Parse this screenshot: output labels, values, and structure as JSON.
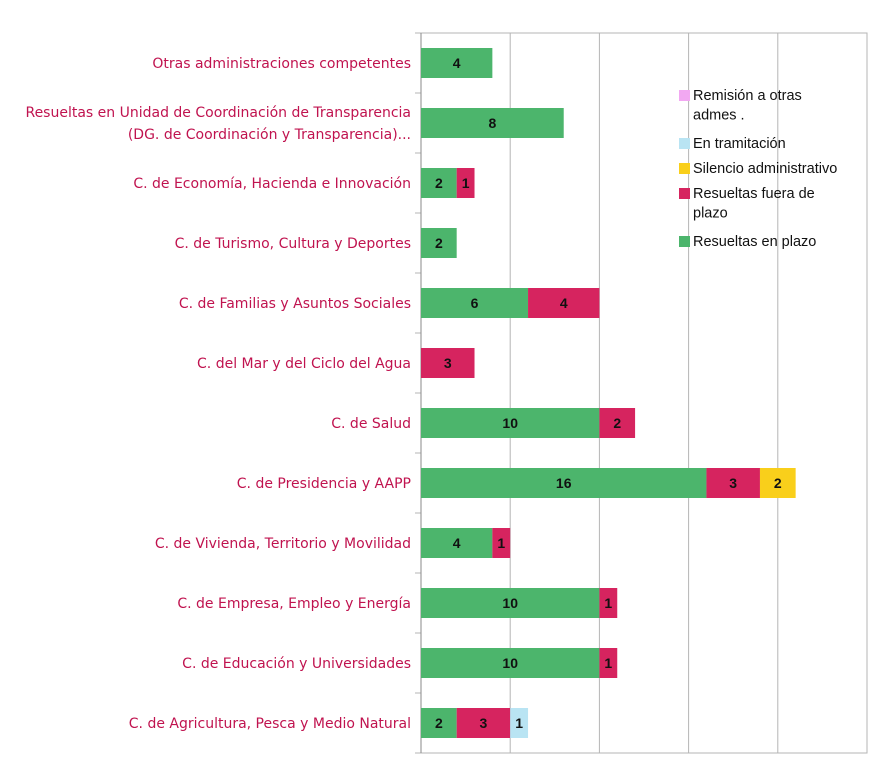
{
  "chart_data": {
    "type": "bar",
    "orientation": "horizontal",
    "stacked": true,
    "xlim": [
      0,
      25
    ],
    "grid": true,
    "legend_position": "right",
    "categories": [
      [
        "Otras administraciones competentes"
      ],
      [
        "Resueltas en Unidad de Coordinación de Transparencia",
        " (DG. de Coordinación y Transparencia)..."
      ],
      [
        "C. de Economía, Hacienda e Innovación"
      ],
      [
        "C. de Turismo, Cultura y Deportes"
      ],
      [
        "C. de Familias y Asuntos Sociales"
      ],
      [
        "C. del Mar y del Ciclo del Agua"
      ],
      [
        "C. de Salud"
      ],
      [
        "C. de Presidencia y AAPP"
      ],
      [
        "C. de Vivienda, Territorio y Movilidad"
      ],
      [
        "C. de Empresa, Empleo y Energía"
      ],
      [
        "C. de Educación y Universidades"
      ],
      [
        "C. de Agricultura, Pesca y Medio Natural"
      ]
    ],
    "series": [
      {
        "name": "Resueltas en plazo",
        "color": "#4cb56c",
        "values": [
          4,
          8,
          2,
          2,
          6,
          0,
          10,
          16,
          4,
          10,
          10,
          2
        ]
      },
      {
        "name": "Resueltas fuera de plazo",
        "color": "#d6245f",
        "values": [
          0,
          0,
          1,
          0,
          4,
          3,
          2,
          3,
          1,
          1,
          1,
          3
        ]
      },
      {
        "name": "Silencio administrativo",
        "color": "#f9cf1b",
        "values": [
          0,
          0,
          0,
          0,
          0,
          0,
          0,
          2,
          0,
          0,
          0,
          0
        ]
      },
      {
        "name": "En tramitación",
        "color": "#b9e4f3",
        "values": [
          0,
          0,
          0,
          0,
          0,
          0,
          0,
          0,
          0,
          0,
          0,
          1
        ]
      },
      {
        "name": "Remisión a otras admes .",
        "color": "#f2a8f2",
        "values": [
          0,
          0,
          0,
          0,
          0,
          0,
          0,
          0,
          0,
          0,
          0,
          0
        ]
      }
    ],
    "legend": [
      {
        "lines": [
          "Remisión a otras",
          "admes ."
        ],
        "color": "#f2a8f2"
      },
      {
        "lines": [
          "En tramitación"
        ],
        "color": "#b9e4f3"
      },
      {
        "lines": [
          "Silencio administrativo"
        ],
        "color": "#f9cf1b"
      },
      {
        "lines": [
          "Resueltas fuera de",
          "plazo"
        ],
        "color": "#d6245f"
      },
      {
        "lines": [
          "Resueltas en plazo"
        ],
        "color": "#4cb56c"
      }
    ],
    "category_label_color": "#c0134f",
    "gridline_color": "#b5b5b5"
  }
}
